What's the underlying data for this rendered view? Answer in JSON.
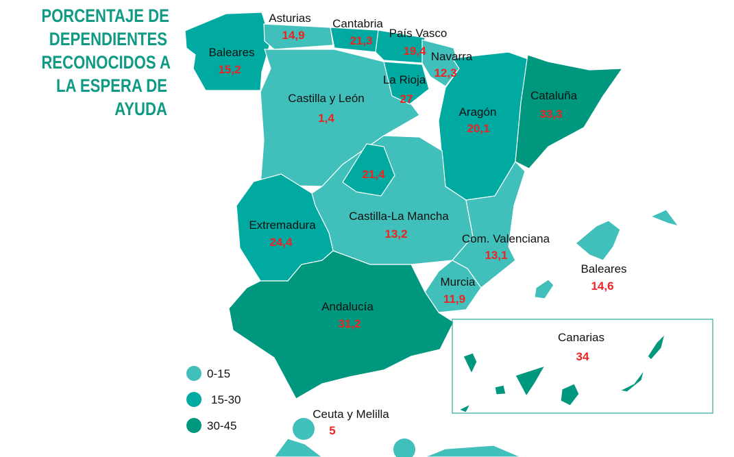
{
  "title_lines": [
    "PORCENTAJE DE",
    "DEPENDIENTES",
    "RECONOCIDOS A",
    "LA ESPERA DE",
    "AYUDA"
  ],
  "colors": {
    "0-15": "#41bfba",
    "15-30": "#00aaa0",
    "30-45": "#00977f",
    "title": "#0f9a83",
    "value": "#ee2222"
  },
  "legend": [
    {
      "label": "0-15",
      "color": "#41bfba"
    },
    {
      "label": "15-30",
      "color": "#00aaa0"
    },
    {
      "label": "30-45",
      "color": "#00977f"
    }
  ],
  "regions": [
    {
      "name": "Baleares",
      "value": "15,2",
      "bin": "15-30"
    },
    {
      "name": "Asturias",
      "value": "14,9",
      "bin": "0-15"
    },
    {
      "name": "Cantabria",
      "value": "21,3",
      "bin": "15-30"
    },
    {
      "name": "País Vasco",
      "value": "19,4",
      "bin": "15-30"
    },
    {
      "name": "Navarra",
      "value": "12,3",
      "bin": "0-15"
    },
    {
      "name": "La Rioja",
      "value": "27",
      "bin": "15-30"
    },
    {
      "name": "Castilla y León",
      "value": "1,4",
      "bin": "0-15"
    },
    {
      "name": "Aragón",
      "value": "20,1",
      "bin": "15-30"
    },
    {
      "name": "Cataluña",
      "value": "33,3",
      "bin": "30-45"
    },
    {
      "name": "",
      "value": "21,4",
      "bin": "15-30"
    },
    {
      "name": "Castilla-La Mancha",
      "value": "13,2",
      "bin": "0-15"
    },
    {
      "name": "Extremadura",
      "value": "24,4",
      "bin": "15-30"
    },
    {
      "name": "Com. Valenciana",
      "value": "13,1",
      "bin": "0-15"
    },
    {
      "name": "Murcia",
      "value": "11,9",
      "bin": "0-15"
    },
    {
      "name": "Andalucía",
      "value": "31,2",
      "bin": "30-45"
    },
    {
      "name": "Baleares",
      "value": "14,6",
      "bin": "0-15"
    },
    {
      "name": "Canarias",
      "value": "34",
      "bin": "30-45"
    },
    {
      "name": "Ceuta y Melilla",
      "value": "5",
      "bin": "0-15"
    }
  ]
}
